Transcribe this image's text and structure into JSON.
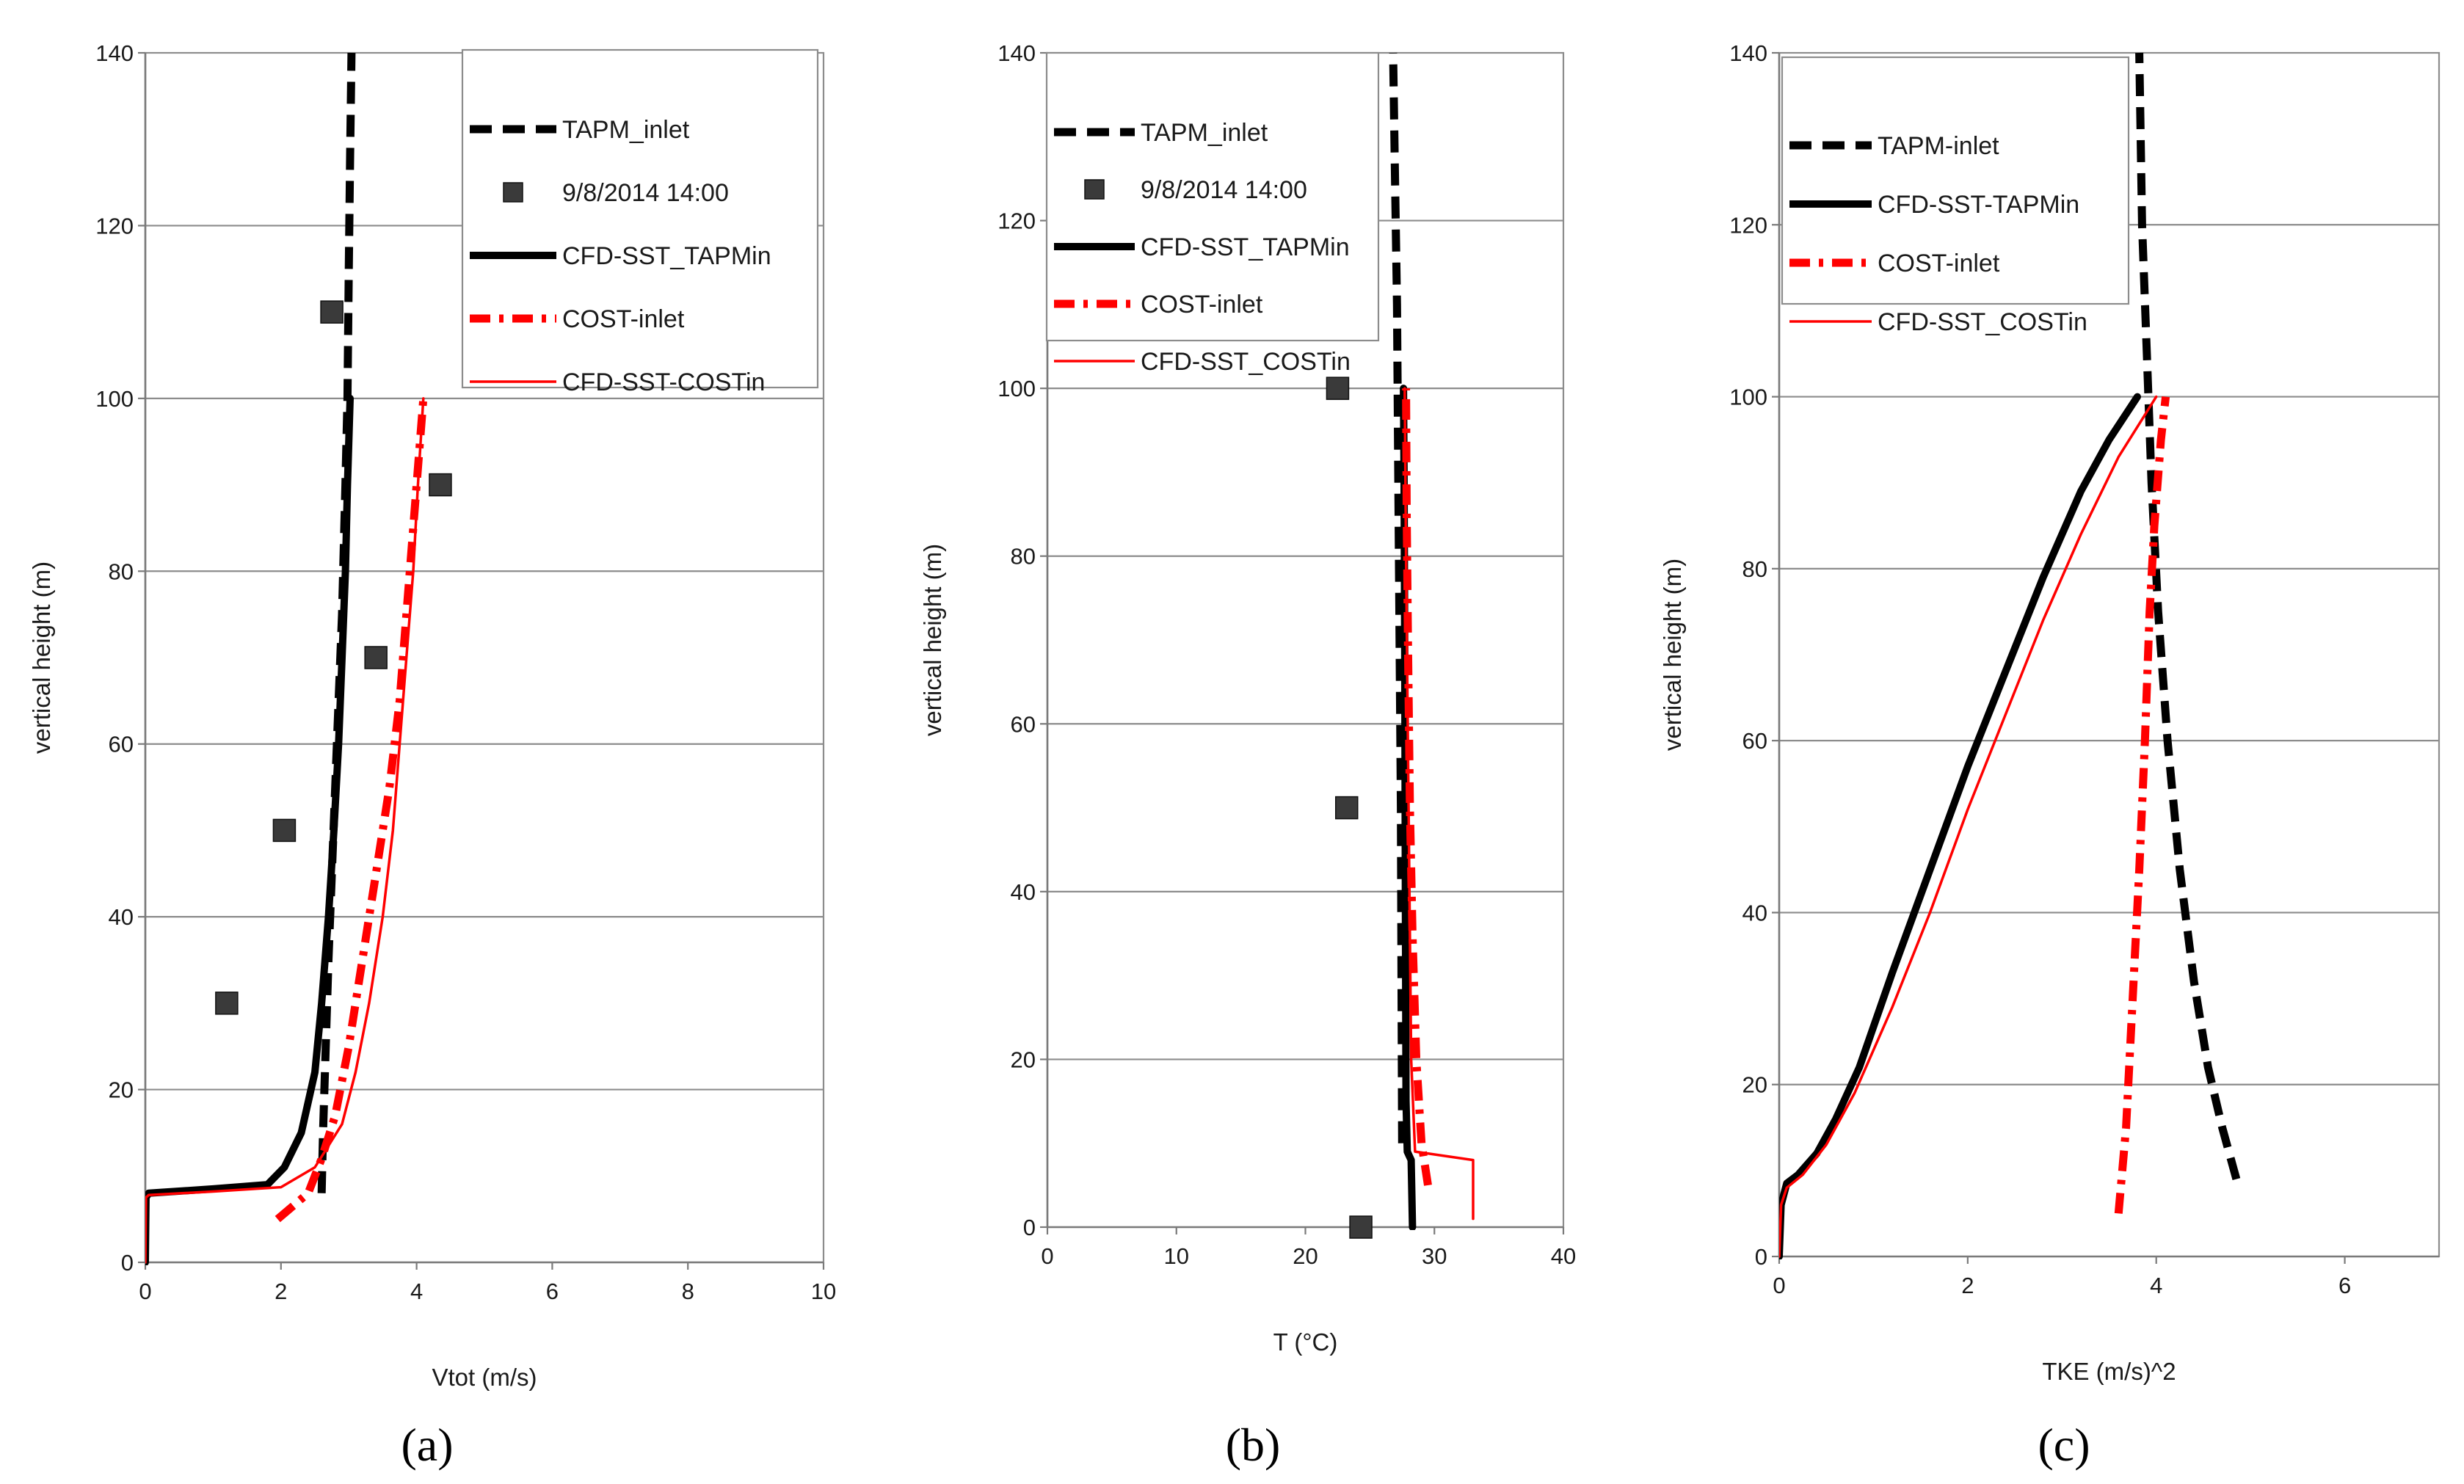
{
  "figure_caption_labels": [
    "(a)",
    "(b)",
    "(c)"
  ],
  "colors": {
    "black": "#000000",
    "red": "#ff0000",
    "marker": "#3a3a3a",
    "grid": "#8c8c8c"
  },
  "chart_data": [
    {
      "type": "line",
      "panel_label": "(a)",
      "xlabel": "Vtot (m/s)",
      "ylabel": "vertical height  (m)",
      "xlim": [
        0,
        10
      ],
      "ylim": [
        0,
        140
      ],
      "xticks": [
        "0",
        "2",
        "4",
        "6",
        "8",
        "10"
      ],
      "yticks": [
        "0",
        "20",
        "40",
        "60",
        "80",
        "100",
        "120",
        "140"
      ],
      "legend_position": "top-right",
      "series": [
        {
          "name": "TAPM_inlet",
          "style": "black-dashed-thick",
          "points": [
            [
              2.6,
              8
            ],
            [
              2.62,
              15
            ],
            [
              2.66,
              25
            ],
            [
              2.7,
              35
            ],
            [
              2.75,
              45
            ],
            [
              2.8,
              55
            ],
            [
              2.85,
              65
            ],
            [
              2.9,
              75
            ],
            [
              2.95,
              90
            ],
            [
              2.98,
              100
            ],
            [
              3.0,
              115
            ],
            [
              3.02,
              128
            ],
            [
              3.04,
              140
            ]
          ]
        },
        {
          "name": "9/8/2014 14:00",
          "style": "square-marker",
          "points": [
            [
              1.2,
              30
            ],
            [
              2.05,
              50
            ],
            [
              3.4,
              70
            ],
            [
              4.35,
              90
            ],
            [
              2.75,
              110
            ]
          ]
        },
        {
          "name": "CFD-SST_TAPMin",
          "style": "black-solid-thick",
          "points": [
            [
              0,
              0
            ],
            [
              0.01,
              7.5
            ],
            [
              0.05,
              8
            ],
            [
              1.0,
              8.5
            ],
            [
              1.8,
              9
            ],
            [
              2.05,
              11
            ],
            [
              2.3,
              15
            ],
            [
              2.5,
              22
            ],
            [
              2.6,
              30
            ],
            [
              2.7,
              40
            ],
            [
              2.78,
              50
            ],
            [
              2.85,
              60
            ],
            [
              2.9,
              70
            ],
            [
              2.95,
              80
            ],
            [
              2.98,
              90
            ],
            [
              3.02,
              100
            ]
          ]
        },
        {
          "name": "COST-inlet",
          "style": "red-dashdot-thick",
          "points": [
            [
              1.95,
              5
            ],
            [
              2.4,
              8
            ],
            [
              2.6,
              12
            ],
            [
              2.8,
              17
            ],
            [
              3.0,
              25
            ],
            [
              3.2,
              35
            ],
            [
              3.4,
              45
            ],
            [
              3.6,
              55
            ],
            [
              3.75,
              65
            ],
            [
              3.85,
              75
            ],
            [
              3.95,
              85
            ],
            [
              4.05,
              95
            ],
            [
              4.1,
              100
            ]
          ]
        },
        {
          "name": "CFD-SST-COSTin",
          "style": "red-solid-thin",
          "points": [
            [
              0,
              0
            ],
            [
              0.01,
              7.5
            ],
            [
              0.05,
              7.8
            ],
            [
              1.0,
              8.2
            ],
            [
              2.0,
              8.7
            ],
            [
              2.5,
              11
            ],
            [
              2.9,
              16
            ],
            [
              3.1,
              22
            ],
            [
              3.3,
              30
            ],
            [
              3.5,
              40
            ],
            [
              3.65,
              50
            ],
            [
              3.75,
              60
            ],
            [
              3.85,
              70
            ],
            [
              3.95,
              80
            ],
            [
              4.02,
              90
            ],
            [
              4.1,
              100
            ]
          ]
        }
      ]
    },
    {
      "type": "line",
      "panel_label": "(b)",
      "xlabel": "T (°C)",
      "ylabel": "vertical height  (m)",
      "xlim": [
        0,
        40
      ],
      "ylim": [
        0,
        140
      ],
      "xticks": [
        "0",
        "10",
        "20",
        "30",
        "40"
      ],
      "yticks": [
        "0",
        "20",
        "40",
        "60",
        "80",
        "100",
        "120",
        "140"
      ],
      "legend_position": "top-right",
      "series": [
        {
          "name": "TAPM_inlet",
          "style": "black-dashed-thick",
          "points": [
            [
              27.5,
              10
            ],
            [
              27.45,
              30
            ],
            [
              27.4,
              50
            ],
            [
              27.3,
              70
            ],
            [
              27.2,
              90
            ],
            [
              27.1,
              110
            ],
            [
              26.95,
              125
            ],
            [
              26.8,
              140
            ]
          ]
        },
        {
          "name": "9/8/2014 14:00",
          "style": "square-marker",
          "points": [
            [
              24.3,
              0
            ],
            [
              23.2,
              50
            ],
            [
              22.5,
              100
            ]
          ]
        },
        {
          "name": "CFD-SST_TAPMin",
          "style": "black-solid-thick",
          "points": [
            [
              28.3,
              0
            ],
            [
              28.2,
              8
            ],
            [
              27.9,
              9
            ],
            [
              27.8,
              15
            ],
            [
              27.75,
              40
            ],
            [
              27.7,
              70
            ],
            [
              27.65,
              90
            ],
            [
              27.6,
              100
            ]
          ]
        },
        {
          "name": "COST-inlet",
          "style": "red-dashdot-thick",
          "points": [
            [
              29.5,
              5
            ],
            [
              29.0,
              10
            ],
            [
              28.6,
              20
            ],
            [
              28.3,
              35
            ],
            [
              28.1,
              50
            ],
            [
              27.95,
              70
            ],
            [
              27.85,
              85
            ],
            [
              27.8,
              100
            ]
          ]
        },
        {
          "name": "CFD-SST_COSTin",
          "style": "red-solid-thin",
          "points": [
            [
              33.0,
              1
            ],
            [
              33.0,
              8
            ],
            [
              28.5,
              9
            ],
            [
              28.2,
              20
            ],
            [
              28.0,
              50
            ],
            [
              27.8,
              80
            ],
            [
              27.7,
              100
            ]
          ]
        }
      ]
    },
    {
      "type": "line",
      "panel_label": "(c)",
      "xlabel": "TKE (m/s)^2",
      "ylabel": "vertical height  (m)",
      "xlim": [
        0,
        7
      ],
      "ylim": [
        0,
        140
      ],
      "xticks": [
        "0",
        "2",
        "4",
        "6"
      ],
      "yticks": [
        "0",
        "20",
        "40",
        "60",
        "80",
        "100",
        "120",
        "140"
      ],
      "legend_position": "top-left",
      "series": [
        {
          "name": "TAPM-inlet",
          "style": "black-dashed-thick",
          "points": [
            [
              4.85,
              9
            ],
            [
              4.7,
              15
            ],
            [
              4.55,
              22
            ],
            [
              4.4,
              32
            ],
            [
              4.25,
              45
            ],
            [
              4.12,
              60
            ],
            [
              4.02,
              75
            ],
            [
              3.95,
              90
            ],
            [
              3.9,
              105
            ],
            [
              3.85,
              120
            ],
            [
              3.82,
              140
            ]
          ]
        },
        {
          "name": "CFD-SST-TAPMin",
          "style": "black-solid-thick",
          "points": [
            [
              0,
              0
            ],
            [
              0.02,
              6
            ],
            [
              0.08,
              8.5
            ],
            [
              0.2,
              9.5
            ],
            [
              0.4,
              12
            ],
            [
              0.6,
              16
            ],
            [
              0.85,
              22
            ],
            [
              1.2,
              33
            ],
            [
              1.6,
              45
            ],
            [
              2.0,
              57
            ],
            [
              2.4,
              68
            ],
            [
              2.8,
              79
            ],
            [
              3.2,
              89
            ],
            [
              3.5,
              95
            ],
            [
              3.8,
              100
            ]
          ]
        },
        {
          "name": "COST-inlet",
          "style": "red-dashdot-thick",
          "points": [
            [
              3.6,
              5
            ],
            [
              3.68,
              15
            ],
            [
              3.75,
              30
            ],
            [
              3.82,
              45
            ],
            [
              3.88,
              60
            ],
            [
              3.93,
              75
            ],
            [
              3.98,
              85
            ],
            [
              4.05,
              95
            ],
            [
              4.1,
              100
            ]
          ]
        },
        {
          "name": "CFD-SST_COSTin",
          "style": "red-solid-thin",
          "points": [
            [
              0,
              0
            ],
            [
              0.02,
              6
            ],
            [
              0.08,
              8
            ],
            [
              0.25,
              9.5
            ],
            [
              0.5,
              13
            ],
            [
              0.8,
              19
            ],
            [
              1.2,
              29
            ],
            [
              1.6,
              40
            ],
            [
              2.0,
              52
            ],
            [
              2.4,
              63
            ],
            [
              2.8,
              74
            ],
            [
              3.2,
              84
            ],
            [
              3.6,
              93
            ],
            [
              4.0,
              100
            ]
          ]
        }
      ]
    }
  ]
}
